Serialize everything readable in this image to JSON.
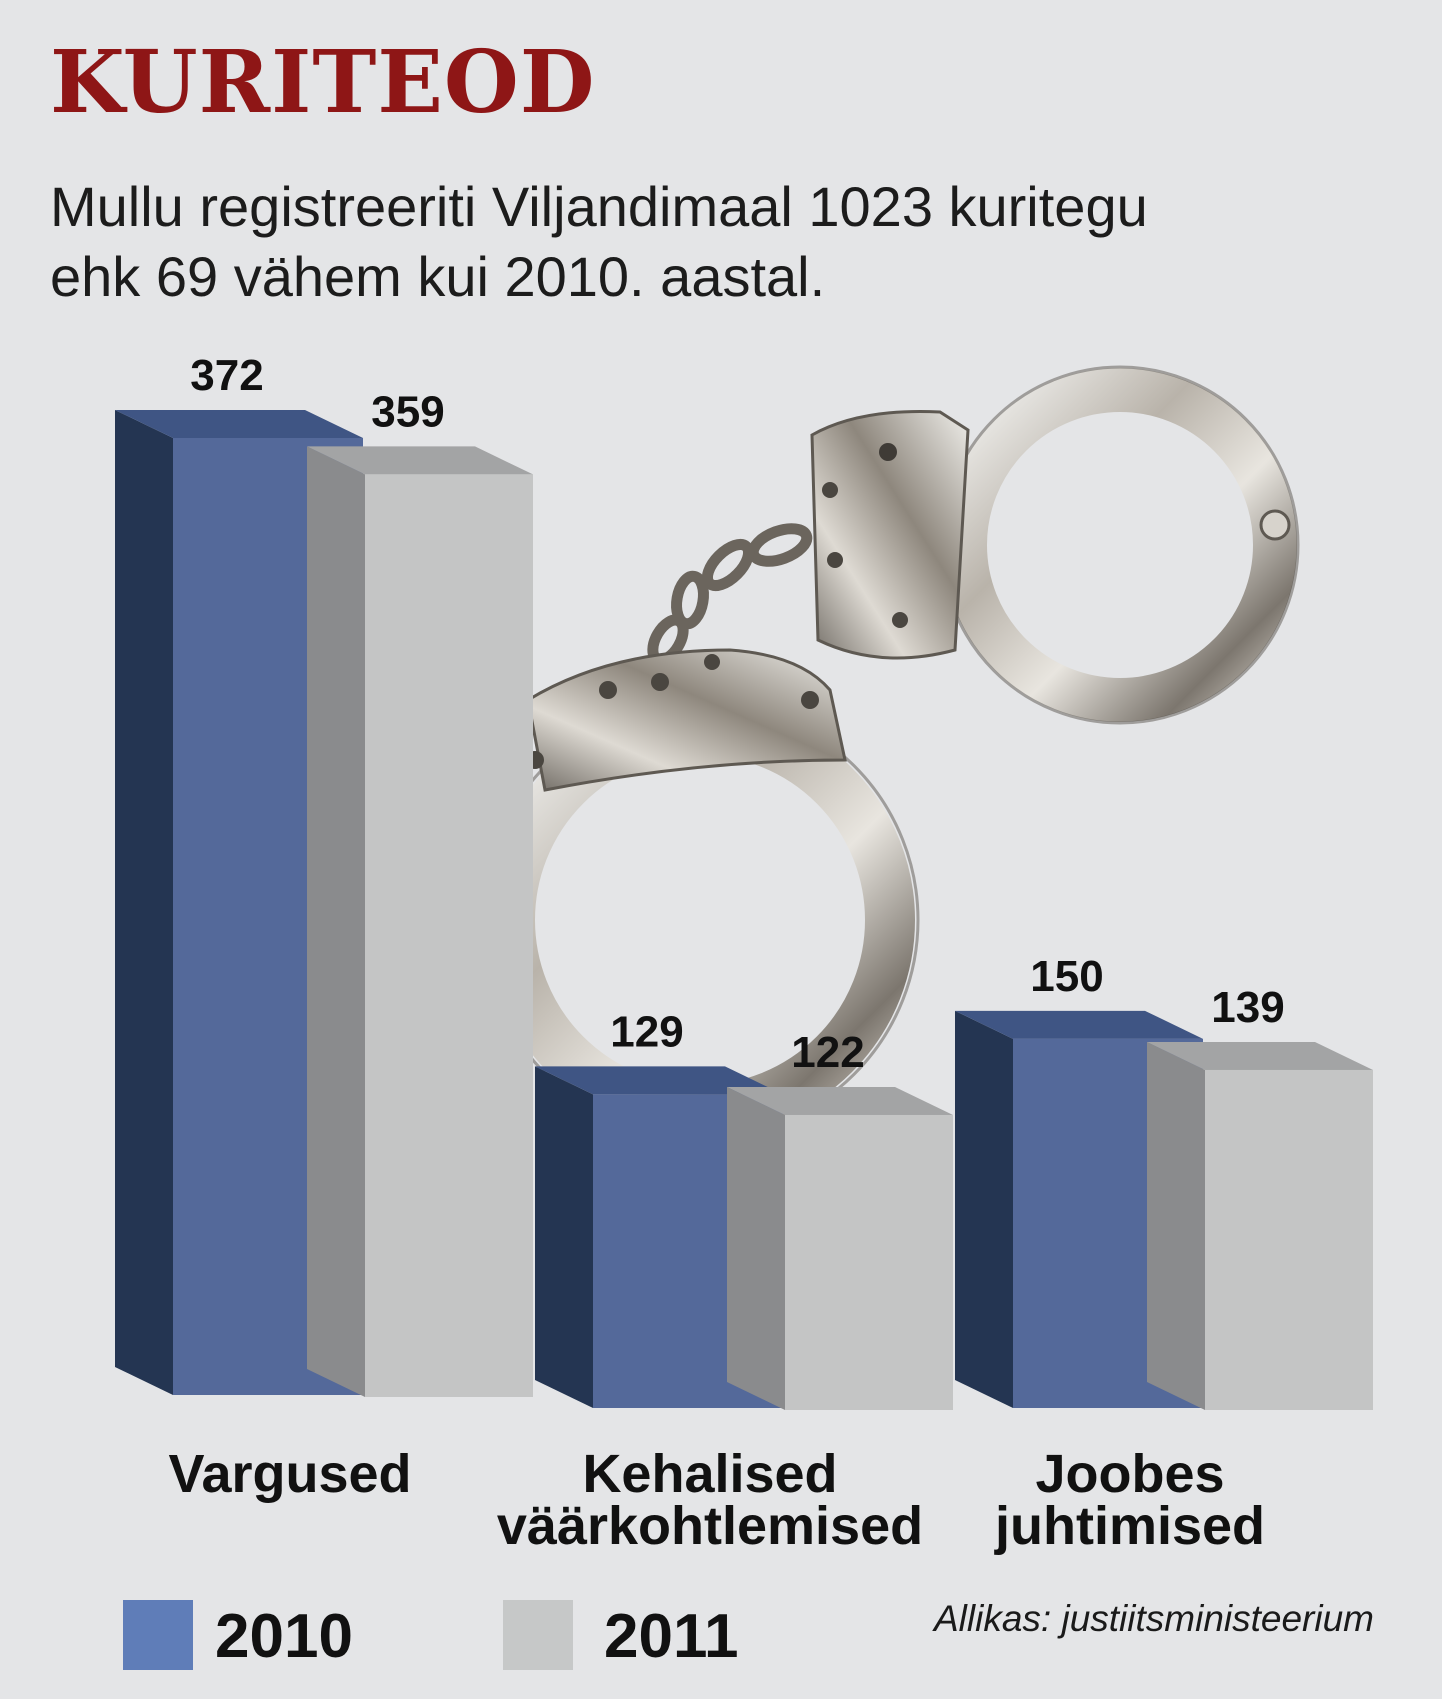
{
  "header": {
    "title": "KURITEOD",
    "subtitle_line1": "Mullu registreeriti Viljandimaal 1023 kuritegu",
    "subtitle_line2": "ehk 69 vähem kui 2010. aastal."
  },
  "chart_data": {
    "type": "bar",
    "categories": [
      [
        "Vargused"
      ],
      [
        "Kehalised",
        "väärkohtlemised"
      ],
      [
        "Joobes",
        "juhtimised"
      ]
    ],
    "series": [
      {
        "name": "2010",
        "values": [
          372,
          129,
          150
        ],
        "color": "#54699a"
      },
      {
        "name": "2011",
        "values": [
          359,
          122,
          139
        ],
        "color": "#c4c5c5"
      }
    ],
    "ylim": [
      0,
      372
    ],
    "grid": false,
    "legend_position": "bottom-left"
  },
  "legend": [
    {
      "label": "2010",
      "color": "#5f7db8"
    },
    {
      "label": "2011",
      "color": "#c6c8c8"
    }
  ],
  "source": "Allikas: justiitsministeerium",
  "decoration": {
    "image": "handcuffs-image"
  },
  "colors": {
    "title": "#8e1616",
    "bar_2010_front": "#54699a",
    "bar_2010_side": "#243552",
    "bar_2011_front": "#c4c5c5",
    "bar_2011_side": "#8a8b8d"
  }
}
